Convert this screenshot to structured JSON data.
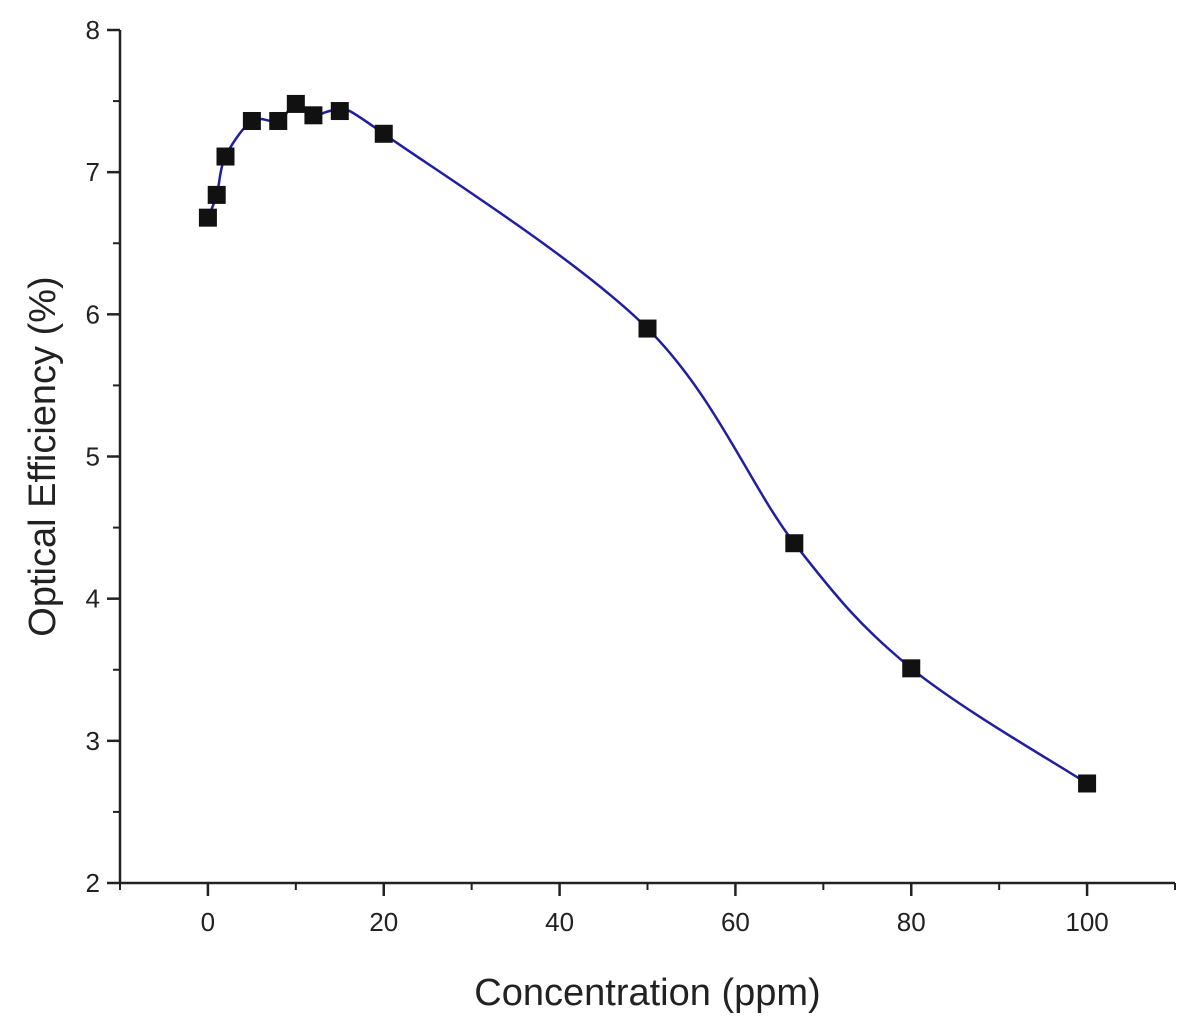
{
  "chart_data": {
    "type": "line",
    "title": "",
    "xlabel": "Concentration (ppm)",
    "ylabel": "Optical Efficiency (%)",
    "xlim": [
      -10,
      110
    ],
    "ylim": [
      2,
      8
    ],
    "x_ticks": [
      0,
      20,
      40,
      60,
      80,
      100
    ],
    "x_minor_step": 10,
    "y_ticks": [
      2,
      3,
      4,
      5,
      6,
      7,
      8
    ],
    "y_minor_step": 0.5,
    "grid": false,
    "legend": "none",
    "series": [
      {
        "marker": "square",
        "marker_color": "#111111",
        "line_color": "#1f1fa0",
        "line": "smooth",
        "points": [
          {
            "x": 0,
            "y": 6.68
          },
          {
            "x": 1,
            "y": 6.84
          },
          {
            "x": 2,
            "y": 7.11
          },
          {
            "x": 5,
            "y": 7.36
          },
          {
            "x": 8,
            "y": 7.36
          },
          {
            "x": 10,
            "y": 7.48
          },
          {
            "x": 12,
            "y": 7.4
          },
          {
            "x": 15,
            "y": 7.43
          },
          {
            "x": 20,
            "y": 7.27
          },
          {
            "x": 50,
            "y": 5.9
          },
          {
            "x": 66.7,
            "y": 4.39
          },
          {
            "x": 80,
            "y": 3.51
          },
          {
            "x": 100,
            "y": 2.7
          }
        ]
      }
    ]
  }
}
